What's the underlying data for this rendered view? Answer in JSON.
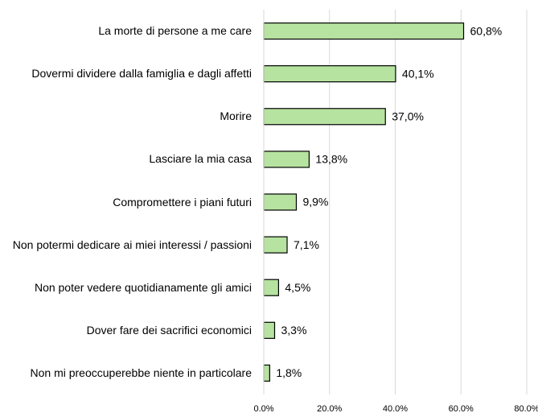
{
  "chart_data": {
    "type": "bar",
    "orientation": "horizontal",
    "categories": [
      "La morte di persone a me care",
      "Dovermi dividere dalla famiglia e dagli affetti",
      "Morire",
      "Lasciare la mia casa",
      "Compromettere i piani futuri",
      "Non potermi dedicare ai miei interessi / passioni",
      "Non poter vedere quotidianamente gli amici",
      "Dover fare dei sacrifici economici",
      "Non mi preoccuperebbe niente in particolare"
    ],
    "values": [
      60.8,
      40.1,
      37.0,
      13.8,
      9.9,
      7.1,
      4.5,
      3.3,
      1.8
    ],
    "value_labels": [
      "60,8%",
      "40,1%",
      "37,0%",
      "13,8%",
      "9,9%",
      "7,1%",
      "4,5%",
      "3,3%",
      "1,8%"
    ],
    "color": "#b6e3a0",
    "xlim": [
      0,
      80
    ],
    "xticks": [
      {
        "value": 0,
        "label": "0.0%"
      },
      {
        "value": 20,
        "label": "20.0%"
      },
      {
        "value": 40,
        "label": "40.0%"
      },
      {
        "value": 60,
        "label": "60.0%"
      },
      {
        "value": 80,
        "label": "80.0%"
      }
    ],
    "grid": true
  }
}
